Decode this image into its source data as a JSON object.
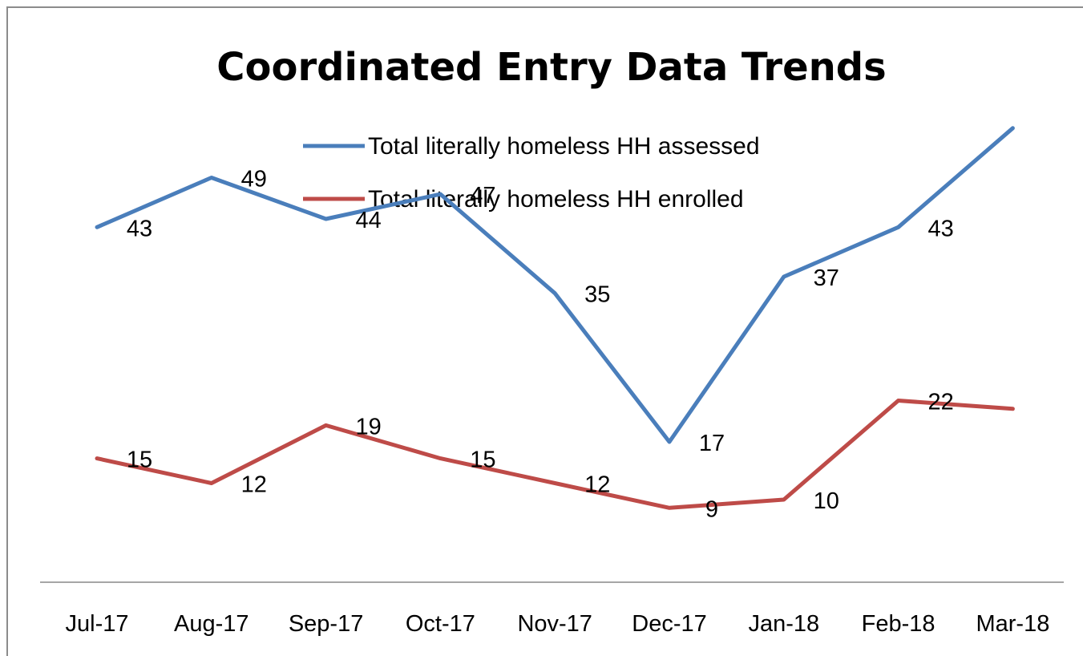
{
  "chart_data": {
    "type": "line",
    "title": "Coordinated Entry Data Trends",
    "xlabel": "",
    "ylabel": "",
    "categories": [
      "Jul-17",
      "Aug-17",
      "Sep-17",
      "Oct-17",
      "Nov-17",
      "Dec-17",
      "Jan-18",
      "Feb-18",
      "Mar-18"
    ],
    "series": [
      {
        "name": "Total literally homeless HH assessed",
        "color": "#4a7ebb",
        "values": [
          43,
          49,
          44,
          47,
          35,
          17,
          37,
          43,
          55
        ]
      },
      {
        "name": "Total literally homeless HH enrolled",
        "color": "#be4b48",
        "values": [
          15,
          12,
          19,
          15,
          12,
          9,
          10,
          22,
          21
        ]
      }
    ],
    "ylim": [
      0,
      60
    ],
    "grid": false,
    "legend_position": "top"
  }
}
